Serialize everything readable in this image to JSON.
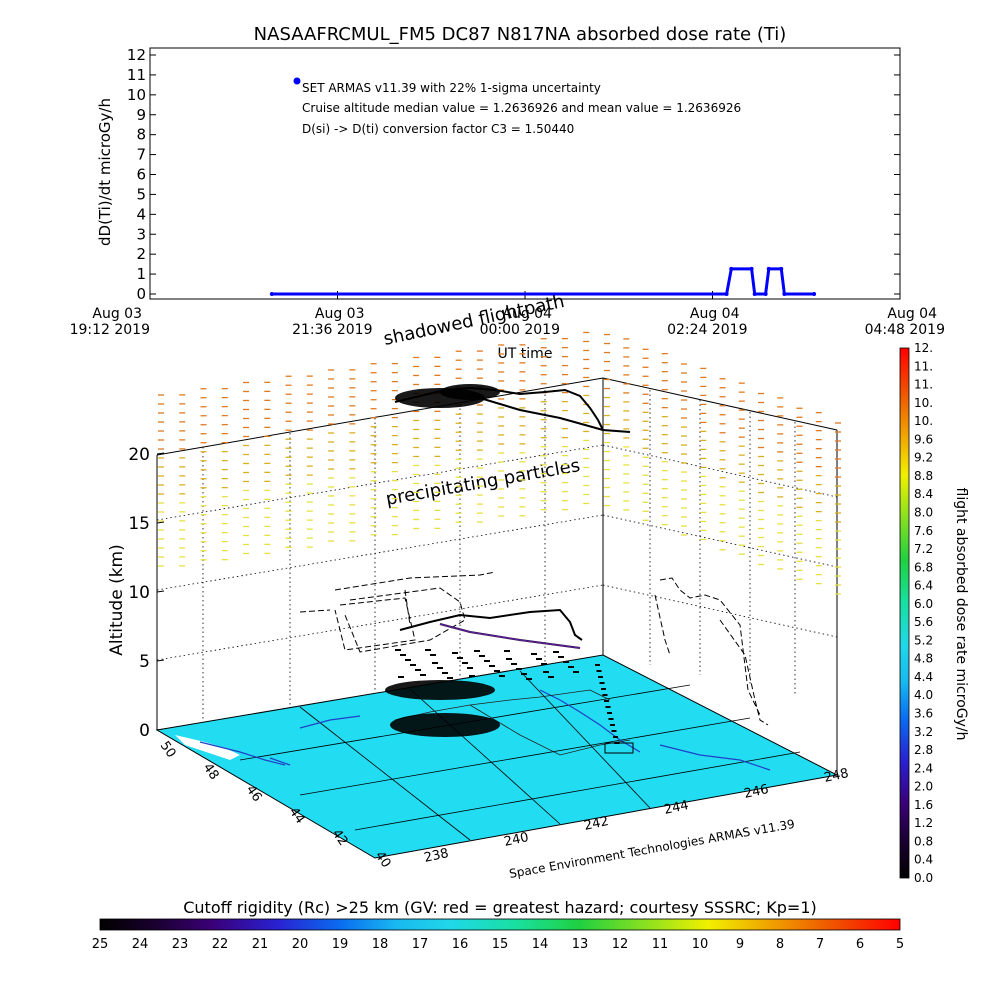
{
  "chart_data": [
    {
      "type": "line",
      "title": "NASAAFRCMUL_FM5 DC87 N817NA absorbed dose rate (Ti)",
      "ylabel": "dD(Ti)/dt microGy/h",
      "xlabel": "UT time",
      "ylim": [
        0,
        12
      ],
      "yticks": [
        "0",
        "1",
        "2",
        "3",
        "4",
        "5",
        "6",
        "7",
        "8",
        "9",
        "10",
        "11",
        "12"
      ],
      "xticks": [
        {
          "l1": "Aug 03",
          "l2": "19:12 2019"
        },
        {
          "l1": "Aug 03",
          "l2": "21:36 2019"
        },
        {
          "l1": "Aug 04",
          "l2": "00:00 2019"
        },
        {
          "l1": "Aug 04",
          "l2": "02:24 2019"
        },
        {
          "l1": "Aug 04",
          "l2": "04:48 2019"
        }
      ],
      "xlim_hours": [
        0,
        9.6
      ],
      "legend": {
        "line1": "SET ARMAS v11.39 with 22% 1-sigma uncertainty",
        "line2": "Cruise altitude median value = 1.2636926 and mean value = 1.2636926",
        "line3": "D(si) -> D(ti) conversion factor C3 = 1.50440"
      },
      "series": [
        {
          "color": "#0000ff",
          "points": [
            [
              1.56,
              0
            ],
            [
              7.38,
              0
            ],
            [
              7.44,
              1.26
            ],
            [
              7.7,
              1.26
            ],
            [
              7.74,
              0
            ],
            [
              7.88,
              0
            ],
            [
              7.92,
              1.26
            ],
            [
              8.08,
              1.26
            ],
            [
              8.12,
              0
            ],
            [
              8.5,
              0
            ]
          ]
        }
      ]
    },
    {
      "type": "scatter",
      "annotations": [
        "shadowed flightpath",
        "precipitating particles"
      ],
      "zlabel": "Altitude (km)",
      "zticks": [
        "0",
        "5",
        "10",
        "15",
        "20"
      ],
      "lat_ticks": [
        "50",
        "48",
        "46",
        "44",
        "42",
        "40"
      ],
      "lon_ticks": [
        "238",
        "240",
        "242",
        "244",
        "246",
        "248"
      ],
      "footer": "Space Environment Technologies ARMAS v11.39",
      "colorbar_right": {
        "label": "flight absorbed dose rate microGy/h",
        "ticks": [
          "0.0",
          "0.4",
          "0.8",
          "1.2",
          "1.6",
          "2.0",
          "2.4",
          "2.8",
          "3.2",
          "3.6",
          "4.0",
          "4.4",
          "4.8",
          "5.2",
          "5.6",
          "6.0",
          "6.4",
          "6.8",
          "7.2",
          "7.6",
          "8.0",
          "8.4",
          "8.8",
          "9.2",
          "9.6",
          "10.",
          "10.",
          "11.",
          "11.",
          "12."
        ]
      },
      "colorbar_bottom": {
        "title": "Cutoff rigidity (Rc) >25 km (GV: red = greatest hazard; courtesy SSSRC; Kp=1)",
        "ticks": [
          "25",
          "24",
          "23",
          "22",
          "21",
          "20",
          "19",
          "18",
          "17",
          "16",
          "15",
          "14",
          "13",
          "12",
          "11",
          "10",
          "9",
          "8",
          "7",
          "6",
          "5"
        ]
      }
    }
  ]
}
